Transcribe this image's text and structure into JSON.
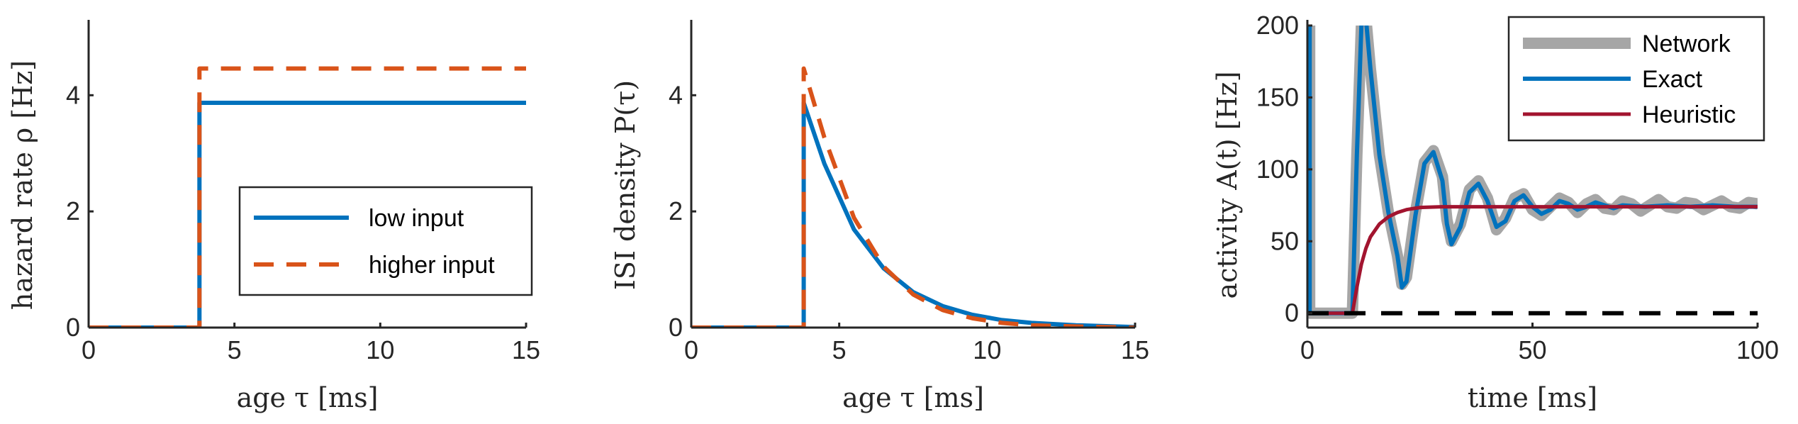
{
  "colors": {
    "blue": "#0072BD",
    "orange": "#D95319",
    "gray": "#A6A6A6",
    "crimson": "#A2142F",
    "black": "#000000"
  },
  "chart_data": [
    {
      "type": "line",
      "xlabel": "age τ [ms]",
      "ylabel": "hazard rate ρ [Hz]",
      "xlim": [
        0,
        15
      ],
      "ylim": [
        0,
        5.2
      ],
      "xticks": [
        "0",
        "5",
        "10",
        "15"
      ],
      "yticks": [
        "0",
        "2",
        "4"
      ],
      "legend_position": "center-right",
      "series": [
        {
          "name": "low input",
          "style": "solid",
          "color": "#0072BD",
          "x": [
            0,
            3.8,
            3.8,
            15
          ],
          "y": [
            0,
            0,
            3.87,
            3.87
          ]
        },
        {
          "name": "higher input",
          "style": "dashed",
          "color": "#D95319",
          "x": [
            0,
            3.8,
            3.8,
            15
          ],
          "y": [
            0,
            0,
            4.46,
            4.46
          ]
        }
      ]
    },
    {
      "type": "line",
      "xlabel": "age τ [ms]",
      "ylabel": "ISI density P(τ)",
      "xlim": [
        0,
        15
      ],
      "ylim": [
        0,
        5.2
      ],
      "xticks": [
        "0",
        "5",
        "10",
        "15"
      ],
      "yticks": [
        "0",
        "2",
        "4"
      ],
      "series": [
        {
          "style": "solid",
          "color": "#0072BD",
          "x": [
            0,
            3.8,
            3.8,
            4.5,
            5.5,
            6.5,
            7.5,
            8.5,
            9.5,
            10.5,
            11.5,
            13,
            15
          ],
          "y": [
            0,
            0,
            3.87,
            2.82,
            1.69,
            1.02,
            0.61,
            0.37,
            0.22,
            0.13,
            0.08,
            0.04,
            0.01
          ]
        },
        {
          "style": "dashed",
          "color": "#D95319",
          "x": [
            0,
            3.8,
            3.8,
            4.5,
            5.5,
            6.5,
            7.5,
            8.5,
            9.5,
            10.5,
            11.5,
            13,
            15
          ],
          "y": [
            0,
            0,
            4.46,
            3.27,
            1.89,
            1.05,
            0.57,
            0.3,
            0.16,
            0.08,
            0.04,
            0.02,
            0.0
          ]
        }
      ]
    },
    {
      "type": "line",
      "xlabel": "time [ms]",
      "ylabel": "activity A(t) [Hz]",
      "xlim": [
        0,
        100
      ],
      "ylim": [
        -10,
        200
      ],
      "xticks": [
        "0",
        "50",
        "100"
      ],
      "yticks": [
        "0",
        "50",
        "100",
        "150",
        "200"
      ],
      "legend_position": "top-right",
      "series": [
        {
          "name": "Network",
          "style": "solid-thick",
          "color": "#A6A6A6",
          "x": [
            0,
            0.5,
            0.5,
            10,
            11,
            12,
            13,
            14,
            16,
            18,
            20,
            21,
            22,
            24,
            26,
            28,
            30,
            31,
            32,
            34,
            36,
            38,
            40,
            42,
            44,
            46,
            48,
            50,
            52,
            54,
            56,
            58,
            60,
            62,
            64,
            66,
            68,
            70,
            72,
            74,
            76,
            78,
            80,
            82,
            84,
            86,
            88,
            90,
            92,
            94,
            96,
            98,
            100
          ],
          "y": [
            200,
            200,
            0,
            0,
            110,
            200,
            205,
            170,
            110,
            70,
            40,
            20,
            25,
            70,
            105,
            113,
            95,
            65,
            50,
            62,
            86,
            92,
            80,
            58,
            66,
            80,
            83,
            72,
            68,
            74,
            80,
            77,
            70,
            76,
            79,
            73,
            72,
            78,
            76,
            71,
            75,
            79,
            74,
            73,
            77,
            76,
            72,
            75,
            78,
            74,
            73,
            77,
            76
          ]
        },
        {
          "name": "Exact",
          "style": "solid",
          "color": "#0072BD",
          "x": [
            0,
            0.5,
            0.5,
            10,
            11,
            12,
            13,
            14,
            16,
            18,
            20,
            21,
            22,
            24,
            26,
            28,
            30,
            31,
            32,
            34,
            36,
            38,
            40,
            42,
            44,
            46,
            48,
            50,
            52,
            54,
            56,
            58,
            60,
            62,
            64,
            66,
            68,
            70,
            75,
            80,
            85,
            90,
            95,
            100
          ],
          "y": [
            200,
            200,
            0,
            0,
            110,
            200,
            205,
            170,
            110,
            70,
            40,
            18,
            22,
            68,
            104,
            112,
            92,
            62,
            48,
            60,
            84,
            90,
            78,
            60,
            64,
            78,
            82,
            74,
            69,
            72,
            78,
            76,
            72,
            74,
            77,
            75,
            73,
            75,
            74,
            75,
            74,
            75,
            74,
            74
          ]
        },
        {
          "name": "Heuristic",
          "style": "solid",
          "color": "#A2142F",
          "x": [
            0,
            10,
            11,
            12,
            13,
            14,
            16,
            18,
            20,
            22,
            25,
            30,
            35,
            40,
            50,
            60,
            70,
            80,
            90,
            100
          ],
          "y": [
            0,
            0,
            18,
            34,
            45,
            53,
            62,
            67,
            70,
            72,
            73.5,
            74,
            74,
            74,
            74,
            74,
            74,
            74,
            74,
            74
          ]
        },
        {
          "style": "dashed-black",
          "color": "#000000",
          "x": [
            0,
            100
          ],
          "y": [
            0,
            0
          ]
        }
      ]
    }
  ]
}
